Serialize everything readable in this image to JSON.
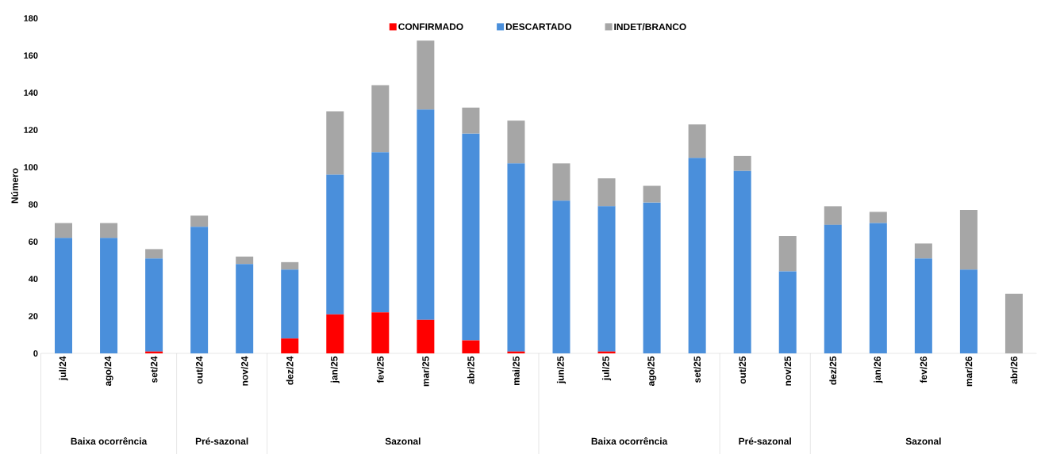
{
  "chart_data": {
    "type": "bar",
    "stacked": true,
    "ylabel": "Número",
    "categories": [
      "jul/24",
      "ago/24",
      "set/24",
      "out/24",
      "nov/24",
      "dez/24",
      "jan/25",
      "fev/25",
      "mar/25",
      "abr/25",
      "mai/25",
      "jun/25",
      "jul/25",
      "ago/25",
      "set/25",
      "out/25",
      "nov/25",
      "dez/25",
      "jan/26",
      "fev/26",
      "mar/26",
      "abr/26"
    ],
    "series": [
      {
        "name": "CONFIRMADO",
        "color": "#ff0000",
        "values": [
          0,
          0,
          1,
          0,
          0,
          8,
          21,
          22,
          18,
          7,
          1,
          0,
          1,
          0,
          0,
          0,
          0,
          0,
          0,
          0,
          0,
          0
        ]
      },
      {
        "name": "DESCARTADO",
        "color": "#4a8fdb",
        "values": [
          62,
          62,
          50,
          68,
          48,
          37,
          75,
          86,
          113,
          111,
          101,
          82,
          78,
          81,
          105,
          98,
          44,
          69,
          70,
          51,
          45,
          0
        ]
      },
      {
        "name": "INDET/BRANCO",
        "color": "#a6a6a6",
        "values": [
          8,
          8,
          5,
          6,
          4,
          4,
          34,
          36,
          37,
          14,
          23,
          20,
          15,
          9,
          18,
          8,
          19,
          10,
          6,
          8,
          32,
          32
        ]
      }
    ],
    "ylim": [
      0,
      180
    ],
    "yticks": [
      0,
      20,
      40,
      60,
      80,
      100,
      120,
      140,
      160,
      180
    ],
    "legend": "top",
    "annotations": [
      "Baixa ocorrência",
      "Pré-sazonal",
      "Sazonal",
      "Baixa ocorrência",
      "Pré-sazonal",
      "Sazonal"
    ]
  }
}
